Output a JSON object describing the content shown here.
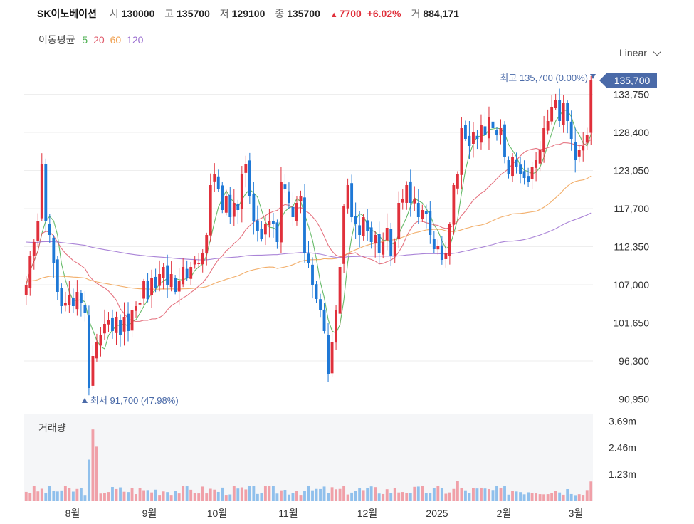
{
  "header": {
    "name": "SK이노베이션",
    "open_label": "시",
    "open": "130000",
    "high_label": "고",
    "high": "135700",
    "low_label": "저",
    "low": "129100",
    "close_label": "종",
    "close": "135700",
    "change": "7700",
    "change_pct": "+6.02%",
    "volume_label": "거",
    "volume": "884,171"
  },
  "ma_legend": {
    "label": "이동평균",
    "items": [
      {
        "text": "5",
        "color": "#4caf50"
      },
      {
        "text": "20",
        "color": "#e05a6a"
      },
      {
        "text": "60",
        "color": "#f0a050"
      },
      {
        "text": "120",
        "color": "#9b6fd0"
      }
    ]
  },
  "scale_mode": "Linear",
  "colors": {
    "up": "#e0303b",
    "down": "#1e78d6",
    "vol_up": "#f0a0a8",
    "vol_down": "#90c0ec",
    "badge": "#4a6aa8"
  },
  "chart_data": {
    "type": "candlestick",
    "price_axis_ticks": [
      "133,750",
      "128,400",
      "123,050",
      "117,700",
      "112,350",
      "107,000",
      "101,650",
      "96,300",
      "90,950"
    ],
    "price_axis_values": [
      133750,
      128400,
      123050,
      117700,
      112350,
      107000,
      101650,
      96300,
      90950
    ],
    "y_range": [
      89500,
      137500
    ],
    "last_price_label": "135,700",
    "last_price": 135700,
    "max_annotation": {
      "label": "최고",
      "value": "135,700 (0.00%)"
    },
    "min_annotation": {
      "label": "최저",
      "value": "91,700 (47.98%)"
    },
    "x_labels": [
      "8월",
      "9월",
      "10월",
      "11월",
      "12월",
      "2025",
      "2월",
      "3월"
    ],
    "closes": [
      107000,
      111000,
      113000,
      116000,
      124000,
      116000,
      114000,
      110000,
      106000,
      104000,
      104500,
      105500,
      104000,
      106000,
      104500,
      103000,
      92500,
      97000,
      99000,
      100000,
      101500,
      102000,
      100500,
      102500,
      100000,
      102500,
      100500,
      103500,
      104000,
      104500,
      107500,
      105000,
      108000,
      106500,
      108500,
      109500,
      107000,
      108500,
      106000,
      107500,
      109500,
      108000,
      109500,
      110500,
      110000,
      111500,
      114000,
      121000,
      122500,
      120500,
      117500,
      119500,
      116500,
      118500,
      117500,
      122500,
      124000,
      119500,
      116000,
      114500,
      113500,
      115500,
      116000,
      115500,
      113000,
      121500,
      120500,
      118500,
      116500,
      118500,
      119500,
      111500,
      110000,
      107000,
      105000,
      103500,
      100500,
      94500,
      99000,
      103500,
      109500,
      118000,
      121000,
      116500,
      115500,
      114000,
      116500,
      114500,
      113000,
      114000,
      111500,
      113000,
      115000,
      111000,
      113000,
      118500,
      119000,
      121000,
      118500,
      119000,
      116500,
      117500,
      117000,
      114000,
      112000,
      112500,
      110500,
      111500,
      115500,
      121000,
      122500,
      129000,
      127500,
      126500,
      128500,
      127500,
      129500,
      128000,
      130500,
      129000,
      128000,
      129000,
      125000,
      122500,
      125000,
      123500,
      122500,
      122000,
      121500,
      123500,
      124500,
      126000,
      129000,
      130000,
      132000,
      133000,
      130000,
      132500,
      130000,
      127500,
      124500,
      126000,
      126500,
      128000,
      135700
    ],
    "volume_axis_ticks": [
      "3.69m",
      "2.46m",
      "1.23m"
    ],
    "volume_axis_values": [
      3690000,
      2460000,
      1230000
    ],
    "volume_label": "거래량"
  }
}
